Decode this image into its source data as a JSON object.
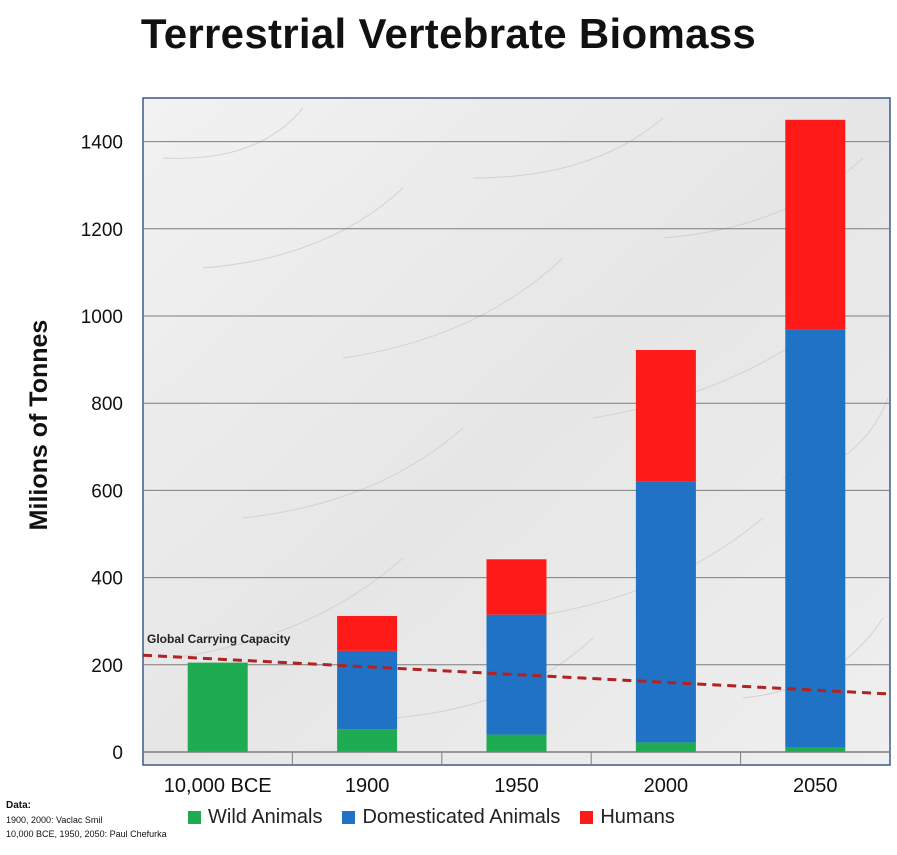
{
  "title": "Terrestrial Vertebrate Biomass",
  "chart_data": {
    "type": "bar",
    "stacked": true,
    "title": "Terrestrial Vertebrate Biomass",
    "xlabel": "",
    "ylabel": "Milions  of Tonnes",
    "ylim": [
      0,
      1500
    ],
    "yticks": [
      0,
      200,
      400,
      600,
      800,
      1000,
      1200,
      1400
    ],
    "grid": true,
    "legend_position": "bottom",
    "categories": [
      "10,000 BCE",
      "1900",
      "1950",
      "2000",
      "2050"
    ],
    "series": [
      {
        "name": "Wild Animals",
        "color": "#1fab52",
        "values": [
          205,
          52,
          40,
          22,
          10
        ]
      },
      {
        "name": "Domesticated Animals",
        "color": "#1f72c4",
        "values": [
          0,
          180,
          275,
          598,
          960
        ]
      },
      {
        "name": "Humans",
        "color": "#ff1a1a",
        "values": [
          0,
          80,
          127,
          302,
          480
        ]
      }
    ],
    "annotations": [
      {
        "text": "Global Carrying Capacity",
        "type": "dashed-line",
        "color": "#b22222",
        "start_value": 222,
        "end_value": 133
      }
    ]
  },
  "source_notes": {
    "heading": "Data:",
    "lines": [
      "1900, 2000: Vaclac Smil",
      "10,000 BCE, 1950, 2050: Paul Chefurka"
    ]
  }
}
